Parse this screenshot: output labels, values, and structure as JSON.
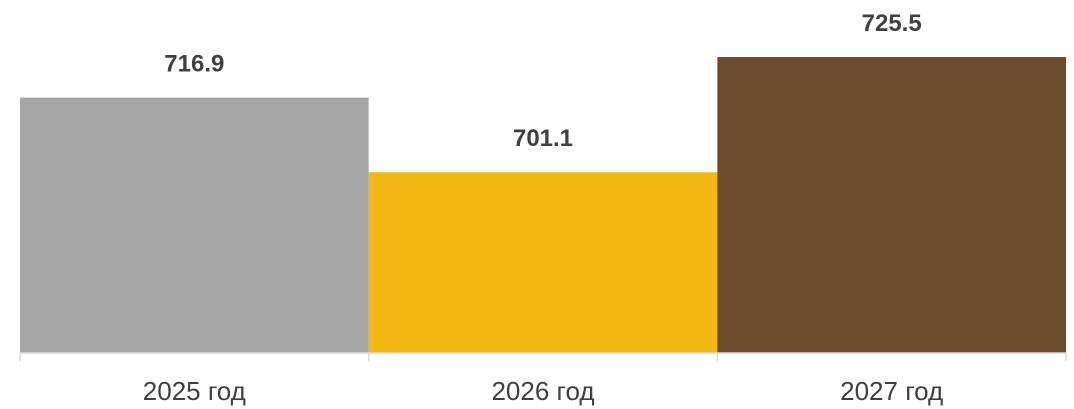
{
  "chart_data": {
    "type": "bar",
    "categories": [
      "2025 год",
      "2026 год",
      "2027 год"
    ],
    "values": [
      716.9,
      701.1,
      725.5
    ],
    "value_labels": [
      "716.9",
      "701.1",
      "725.5"
    ],
    "colors": [
      "#a6a6a6",
      "#f5b716",
      "#6b4c2d"
    ],
    "title": "",
    "xlabel": "",
    "ylabel": "",
    "ylim": [
      662.8,
      727.2
    ],
    "grid": false,
    "legend": "none"
  }
}
